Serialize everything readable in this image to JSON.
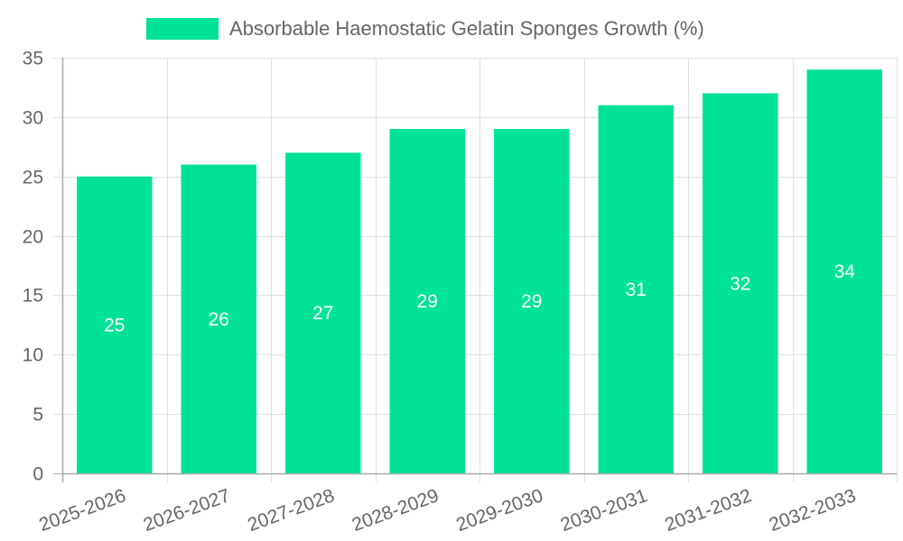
{
  "chart_data": {
    "type": "bar",
    "title": "",
    "categories": [
      "2025-2026",
      "2026-2027",
      "2027-2028",
      "2028-2029",
      "2029-2030",
      "2030-2031",
      "2031-2032",
      "2032-2033"
    ],
    "series": [
      {
        "name": "Absorbable Haemostatic Gelatin Sponges Growth (%)",
        "values": [
          25,
          26,
          27,
          29,
          29,
          31,
          32,
          34
        ],
        "color": "#00e396"
      }
    ],
    "xlabel": "",
    "ylabel": "",
    "ylim": [
      0,
      35
    ],
    "yticks": [
      0,
      5,
      10,
      15,
      20,
      25,
      30,
      35
    ],
    "grid": true,
    "legend_position": "top",
    "data_labels": true
  },
  "legend": {
    "label": "Absorbable Haemostatic Gelatin Sponges Growth (%)"
  },
  "colors": {
    "bar": "#00e396",
    "grid": "#e0e0e0",
    "axis": "#aaaaaa",
    "tick_text": "#666666",
    "data_label": "#ffffff"
  }
}
